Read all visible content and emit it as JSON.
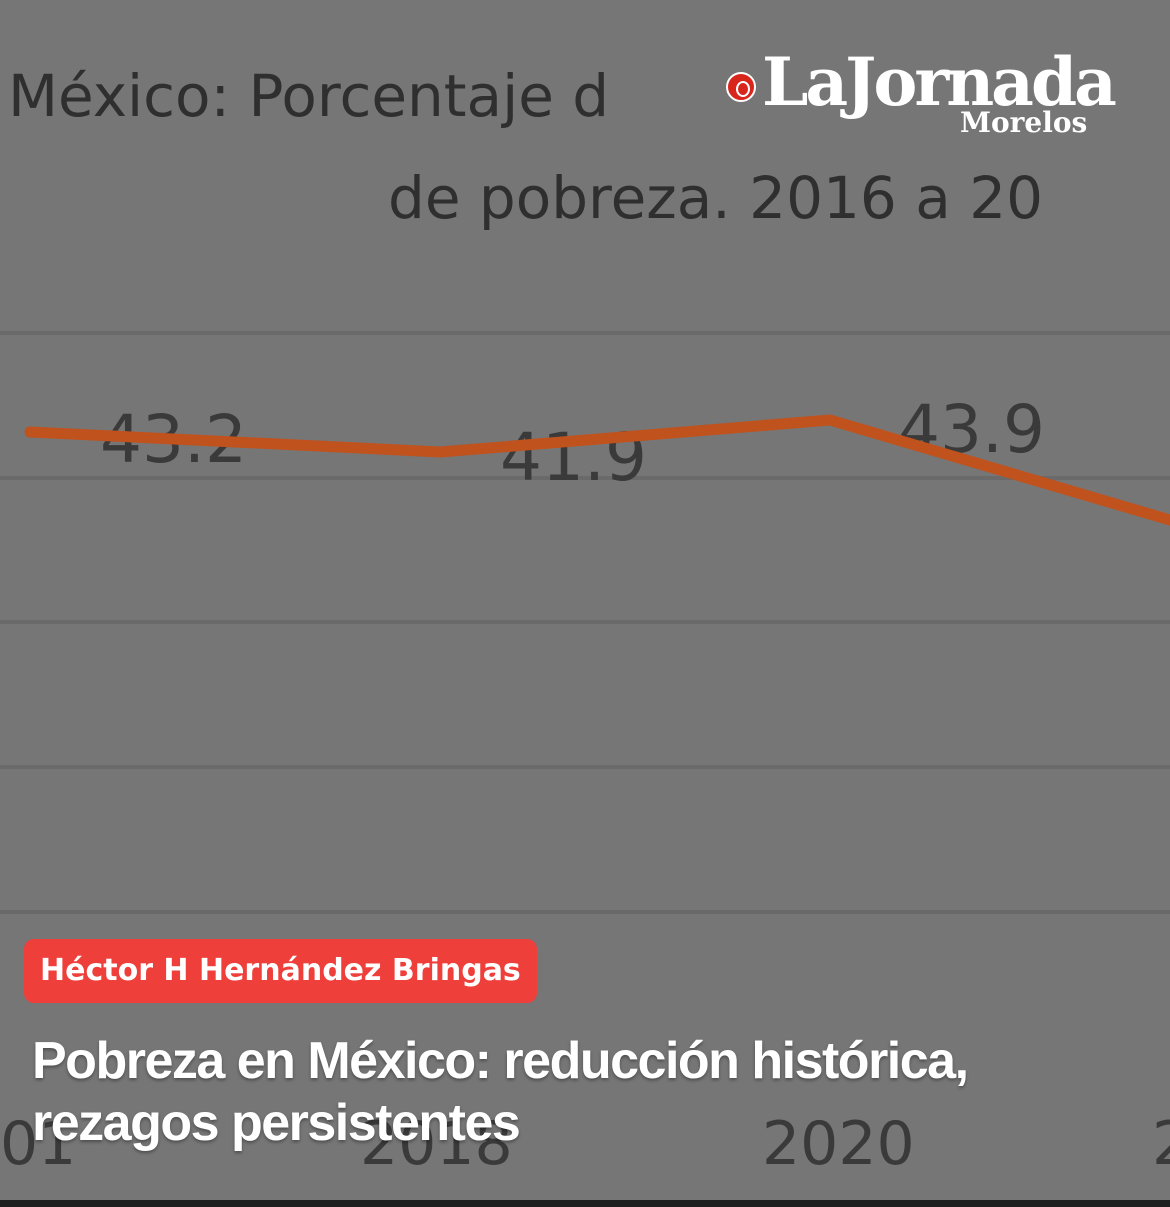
{
  "background_chart": {
    "title_line1": "México: Porcentaje d",
    "title_line2": "de pobreza. 2016 a 20",
    "labels": [
      "43.2",
      "41.9",
      "43.9"
    ],
    "x_ticks": [
      "01",
      "2018",
      "2020",
      "2"
    ],
    "line_color": "#c0521d"
  },
  "logo": {
    "main": "LaJornada",
    "sub": "Morelos",
    "emblem_color": "#d9261c"
  },
  "author_badge": {
    "label": "Héctor H Hernández Bringas",
    "color": "#ee3f3a"
  },
  "headline": {
    "line1": "Pobreza en México: reducción histórica,",
    "line2": "rezagos persistentes"
  }
}
